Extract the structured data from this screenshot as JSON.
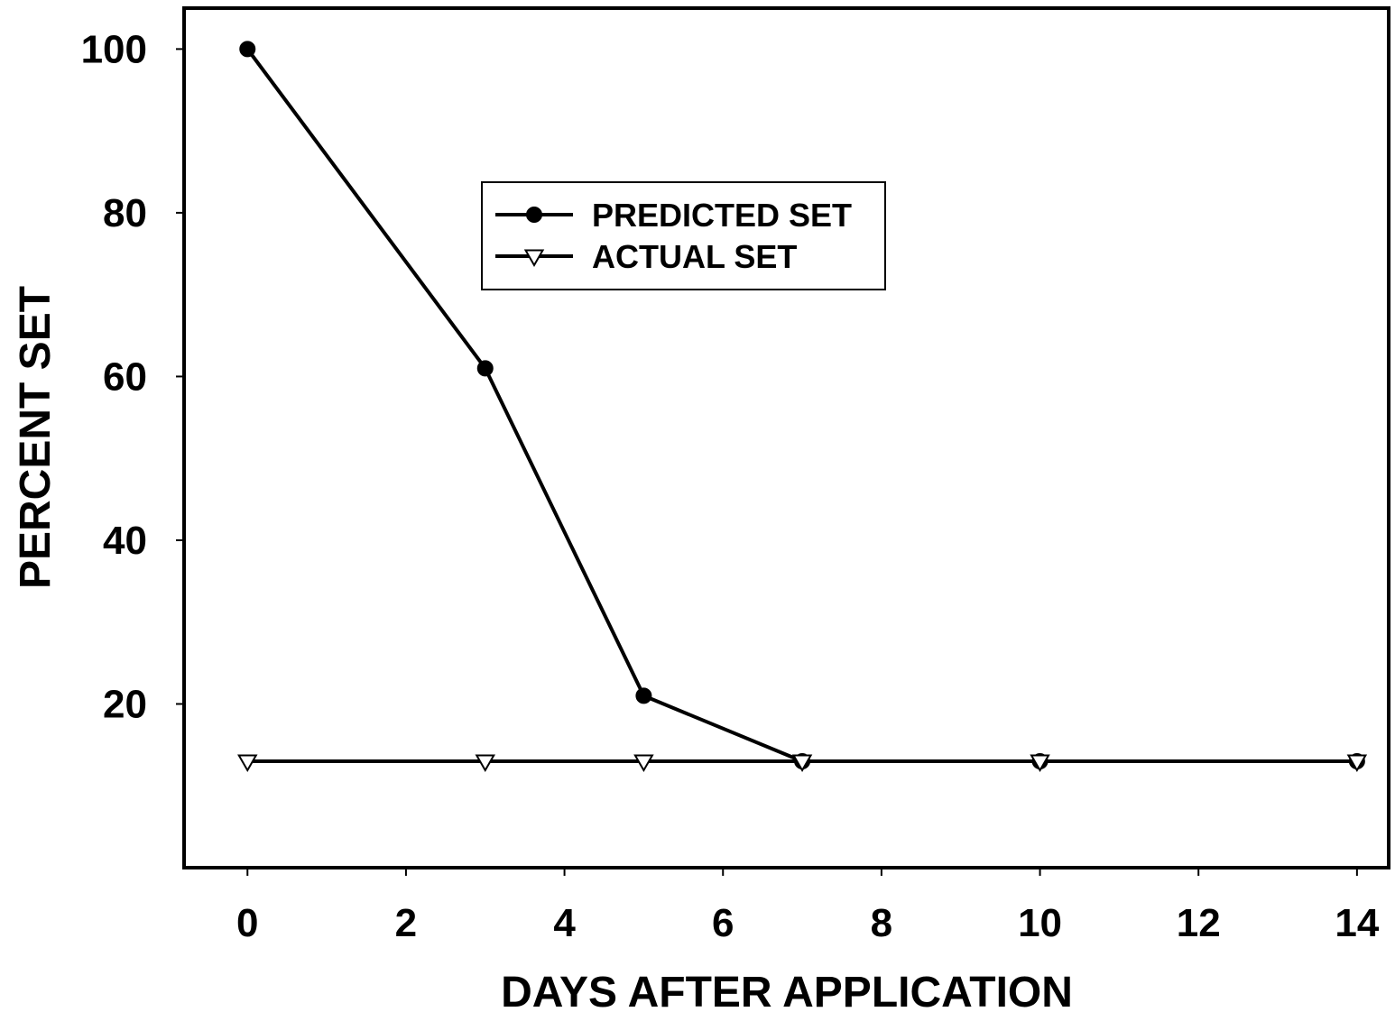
{
  "chart_data": {
    "type": "line",
    "title": "",
    "xlabel": "DAYS AFTER APPLICATION",
    "ylabel": "PERCENT SET",
    "xlim": [
      -0.8,
      14.4
    ],
    "ylim": [
      0,
      105
    ],
    "xticks": [
      0,
      2,
      4,
      6,
      8,
      10,
      12,
      14
    ],
    "yticks": [
      20,
      40,
      60,
      80,
      100
    ],
    "grid": false,
    "legend_position": "top-center",
    "series": [
      {
        "name": "PREDICTED SET",
        "marker": "filled-circle",
        "color": "#000000",
        "x": [
          0,
          3,
          5,
          7,
          10,
          14
        ],
        "y": [
          100,
          61,
          21,
          13,
          13,
          13
        ]
      },
      {
        "name": "ACTUAL SET",
        "marker": "open-down-triangle",
        "color": "#000000",
        "x": [
          0,
          3,
          5,
          7,
          10,
          14
        ],
        "y": [
          13,
          13,
          13,
          13,
          13,
          13
        ]
      }
    ]
  }
}
